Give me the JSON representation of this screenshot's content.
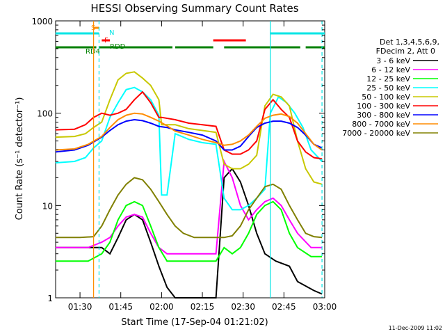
{
  "chart_data": {
    "type": "line",
    "title": "HESSI Observing Summary Count Rates",
    "xlabel": "Start Time (17-Sep-04 01:21:02)",
    "ylabel": "Count Rate (s⁻¹ detector⁻¹)",
    "ylog": true,
    "ylim": [
      1,
      1000
    ],
    "xlim": [
      "01:21:02",
      "03:00:00"
    ],
    "x_tick_labels": [
      "01:30",
      "01:45",
      "02:00",
      "02:15",
      "02:30",
      "02:45",
      "03:00"
    ],
    "y_tick_labels": [
      "1",
      "10",
      "100",
      "1000"
    ],
    "legend_header": [
      "Det 1,3,4,5,6,9,",
      "FDecim 2, Att 0"
    ],
    "legend_placement": "right",
    "timestamp": "11-Dec-2009 11:02",
    "series": [
      {
        "name": "3 - 6 keV",
        "color": "#000000",
        "points": [
          [
            "01:21",
            3.5
          ],
          [
            "01:33",
            3.5
          ],
          [
            "01:38",
            3.5
          ],
          [
            "01:41",
            3.0
          ],
          [
            "01:44",
            4.5
          ],
          [
            "01:47",
            7
          ],
          [
            "01:50",
            8
          ],
          [
            "01:53",
            7
          ],
          [
            "01:56",
            4
          ],
          [
            "01:59",
            2.2
          ],
          [
            "02:02",
            1.3
          ],
          [
            "02:05",
            1
          ],
          [
            "02:20",
            1
          ],
          [
            "02:23",
            20
          ],
          [
            "02:26",
            25
          ],
          [
            "02:29",
            18
          ],
          [
            "02:32",
            10
          ],
          [
            "02:35",
            5
          ],
          [
            "02:38",
            3
          ],
          [
            "02:42",
            2.5
          ],
          [
            "02:47",
            2.2
          ],
          [
            "02:50",
            1.5
          ],
          [
            "02:56",
            1.2
          ],
          [
            "02:59",
            1.1
          ]
        ]
      },
      {
        "name": "6 - 12 keV",
        "color": "#ff00ff",
        "points": [
          [
            "01:21",
            3.5
          ],
          [
            "01:33",
            3.5
          ],
          [
            "01:38",
            4
          ],
          [
            "01:41",
            4.5
          ],
          [
            "01:44",
            6
          ],
          [
            "01:47",
            7.5
          ],
          [
            "01:50",
            8
          ],
          [
            "01:53",
            7.5
          ],
          [
            "01:56",
            5
          ],
          [
            "01:59",
            3.5
          ],
          [
            "02:02",
            3
          ],
          [
            "02:05",
            3
          ],
          [
            "02:20",
            3
          ],
          [
            "02:23",
            30
          ],
          [
            "02:26",
            20
          ],
          [
            "02:29",
            10
          ],
          [
            "02:32",
            7
          ],
          [
            "02:35",
            9
          ],
          [
            "02:38",
            11
          ],
          [
            "02:41",
            12
          ],
          [
            "02:44",
            10
          ],
          [
            "02:47",
            7
          ],
          [
            "02:50",
            5
          ],
          [
            "02:55",
            3.5
          ],
          [
            "02:59",
            3.5
          ]
        ]
      },
      {
        "name": "12 - 25 keV",
        "color": "#00ff00",
        "points": [
          [
            "01:21",
            2.5
          ],
          [
            "01:33",
            2.5
          ],
          [
            "01:38",
            3
          ],
          [
            "01:41",
            4
          ],
          [
            "01:44",
            7
          ],
          [
            "01:47",
            10
          ],
          [
            "01:50",
            11
          ],
          [
            "01:53",
            10
          ],
          [
            "01:56",
            6
          ],
          [
            "01:59",
            3.5
          ],
          [
            "02:02",
            2.5
          ],
          [
            "02:05",
            2.5
          ],
          [
            "02:20",
            2.5
          ],
          [
            "02:23",
            3.5
          ],
          [
            "02:26",
            3
          ],
          [
            "02:29",
            3.5
          ],
          [
            "02:32",
            5
          ],
          [
            "02:35",
            8
          ],
          [
            "02:38",
            10
          ],
          [
            "02:41",
            11
          ],
          [
            "02:44",
            9
          ],
          [
            "02:47",
            5
          ],
          [
            "02:50",
            3.5
          ],
          [
            "02:55",
            2.8
          ],
          [
            "02:59",
            2.8
          ]
        ]
      },
      {
        "name": "25 - 50 keV",
        "color": "#00ffff",
        "points": [
          [
            "01:21",
            29
          ],
          [
            "01:28",
            30
          ],
          [
            "01:32",
            33
          ],
          [
            "01:35",
            42
          ],
          [
            "01:38",
            50
          ],
          [
            "01:41",
            90
          ],
          [
            "01:44",
            130
          ],
          [
            "01:47",
            180
          ],
          [
            "01:50",
            190
          ],
          [
            "01:53",
            170
          ],
          [
            "01:56",
            140
          ],
          [
            "01:59",
            95
          ],
          [
            "02:00",
            13
          ],
          [
            "02:02",
            13
          ],
          [
            "02:05",
            60
          ],
          [
            "02:10",
            52
          ],
          [
            "02:15",
            48
          ],
          [
            "02:20",
            46
          ],
          [
            "02:23",
            12
          ],
          [
            "02:26",
            9
          ],
          [
            "02:29",
            9
          ],
          [
            "02:32",
            10
          ],
          [
            "02:35",
            12
          ],
          [
            "02:38",
            15
          ],
          [
            "02:40",
            100
          ],
          [
            "02:43",
            150
          ],
          [
            "02:46",
            130
          ],
          [
            "02:49",
            100
          ],
          [
            "02:52",
            70
          ],
          [
            "02:55",
            40
          ],
          [
            "02:59",
            30
          ]
        ]
      },
      {
        "name": "50 - 100 keV",
        "color": "#c8c800",
        "points": [
          [
            "01:21",
            55
          ],
          [
            "01:28",
            56
          ],
          [
            "01:32",
            60
          ],
          [
            "01:35",
            70
          ],
          [
            "01:38",
            80
          ],
          [
            "01:41",
            140
          ],
          [
            "01:44",
            230
          ],
          [
            "01:47",
            270
          ],
          [
            "01:50",
            280
          ],
          [
            "01:53",
            240
          ],
          [
            "01:56",
            200
          ],
          [
            "01:59",
            140
          ],
          [
            "02:00",
            75
          ],
          [
            "02:05",
            75
          ],
          [
            "02:10",
            68
          ],
          [
            "02:15",
            65
          ],
          [
            "02:20",
            62
          ],
          [
            "02:23",
            28
          ],
          [
            "02:26",
            25
          ],
          [
            "02:29",
            25
          ],
          [
            "02:32",
            28
          ],
          [
            "02:35",
            35
          ],
          [
            "02:38",
            120
          ],
          [
            "02:41",
            160
          ],
          [
            "02:44",
            150
          ],
          [
            "02:47",
            120
          ],
          [
            "02:50",
            50
          ],
          [
            "02:53",
            25
          ],
          [
            "02:56",
            18
          ],
          [
            "02:59",
            17
          ]
        ]
      },
      {
        "name": "100 - 300 keV",
        "color": "#ff0000",
        "points": [
          [
            "01:21",
            66
          ],
          [
            "01:28",
            67
          ],
          [
            "01:32",
            75
          ],
          [
            "01:35",
            90
          ],
          [
            "01:38",
            100
          ],
          [
            "01:41",
            95
          ],
          [
            "01:44",
            100
          ],
          [
            "01:47",
            110
          ],
          [
            "01:50",
            140
          ],
          [
            "01:53",
            170
          ],
          [
            "01:56",
            130
          ],
          [
            "01:59",
            90
          ],
          [
            "02:00",
            90
          ],
          [
            "02:05",
            85
          ],
          [
            "02:10",
            78
          ],
          [
            "02:15",
            75
          ],
          [
            "02:20",
            72
          ],
          [
            "02:23",
            40
          ],
          [
            "02:26",
            36
          ],
          [
            "02:29",
            36
          ],
          [
            "02:32",
            40
          ],
          [
            "02:35",
            50
          ],
          [
            "02:38",
            110
          ],
          [
            "02:41",
            140
          ],
          [
            "02:44",
            110
          ],
          [
            "02:47",
            90
          ],
          [
            "02:50",
            50
          ],
          [
            "02:53",
            38
          ],
          [
            "02:56",
            33
          ],
          [
            "02:59",
            32
          ]
        ]
      },
      {
        "name": "300 - 800 keV",
        "color": "#0000ff",
        "points": [
          [
            "01:21",
            38
          ],
          [
            "01:28",
            40
          ],
          [
            "01:33",
            45
          ],
          [
            "01:38",
            55
          ],
          [
            "01:41",
            65
          ],
          [
            "01:44",
            75
          ],
          [
            "01:47",
            82
          ],
          [
            "01:50",
            85
          ],
          [
            "01:53",
            83
          ],
          [
            "01:56",
            78
          ],
          [
            "01:59",
            72
          ],
          [
            "02:02",
            70
          ],
          [
            "02:05",
            66
          ],
          [
            "02:10",
            62
          ],
          [
            "02:15",
            58
          ],
          [
            "02:20",
            50
          ],
          [
            "02:23",
            40
          ],
          [
            "02:26",
            40
          ],
          [
            "02:29",
            44
          ],
          [
            "02:32",
            56
          ],
          [
            "02:35",
            70
          ],
          [
            "02:38",
            78
          ],
          [
            "02:41",
            82
          ],
          [
            "02:44",
            82
          ],
          [
            "02:47",
            78
          ],
          [
            "02:50",
            70
          ],
          [
            "02:53",
            58
          ],
          [
            "02:56",
            46
          ],
          [
            "02:59",
            42
          ]
        ]
      },
      {
        "name": "800 - 7000 keV",
        "color": "#ff8c00",
        "points": [
          [
            "01:21",
            40
          ],
          [
            "01:28",
            41
          ],
          [
            "01:33",
            46
          ],
          [
            "01:38",
            56
          ],
          [
            "01:41",
            70
          ],
          [
            "01:44",
            85
          ],
          [
            "01:47",
            95
          ],
          [
            "01:50",
            100
          ],
          [
            "01:53",
            98
          ],
          [
            "01:56",
            90
          ],
          [
            "01:59",
            82
          ],
          [
            "02:02",
            73
          ],
          [
            "02:05",
            64
          ],
          [
            "02:10",
            58
          ],
          [
            "02:15",
            52
          ],
          [
            "02:20",
            48
          ],
          [
            "02:23",
            45
          ],
          [
            "02:26",
            46
          ],
          [
            "02:29",
            50
          ],
          [
            "02:32",
            58
          ],
          [
            "02:35",
            72
          ],
          [
            "02:38",
            88
          ],
          [
            "02:41",
            95
          ],
          [
            "02:44",
            98
          ],
          [
            "02:47",
            92
          ],
          [
            "02:50",
            78
          ],
          [
            "02:53",
            60
          ],
          [
            "02:56",
            46
          ],
          [
            "02:59",
            40
          ]
        ]
      },
      {
        "name": "7000 - 20000 keV",
        "color": "#808000",
        "points": [
          [
            "01:21",
            4.5
          ],
          [
            "01:30",
            4.5
          ],
          [
            "01:35",
            4.6
          ],
          [
            "01:38",
            6
          ],
          [
            "01:41",
            9
          ],
          [
            "01:44",
            13
          ],
          [
            "01:47",
            17
          ],
          [
            "01:50",
            20
          ],
          [
            "01:53",
            19
          ],
          [
            "01:56",
            15
          ],
          [
            "01:59",
            11
          ],
          [
            "02:02",
            8
          ],
          [
            "02:05",
            6
          ],
          [
            "02:08",
            5
          ],
          [
            "02:12",
            4.5
          ],
          [
            "02:20",
            4.5
          ],
          [
            "02:23",
            4.5
          ],
          [
            "02:26",
            4.7
          ],
          [
            "02:29",
            6
          ],
          [
            "02:32",
            9
          ],
          [
            "02:35",
            12
          ],
          [
            "02:38",
            16
          ],
          [
            "02:41",
            17
          ],
          [
            "02:44",
            15
          ],
          [
            "02:47",
            10
          ],
          [
            "02:50",
            7
          ],
          [
            "02:53",
            5
          ],
          [
            "02:56",
            4.6
          ],
          [
            "02:59",
            4.5
          ]
        ]
      }
    ],
    "flags": {
      "labels": [
        "S",
        "N",
        "F",
        "RDD",
        "RD4"
      ],
      "night_color": "#00e5e5",
      "saa_color": "#ff8c00",
      "flare_color": "#ff0000",
      "decim_color": "#008000",
      "night_intervals": [
        [
          "01:21",
          "01:37"
        ],
        [
          "02:40",
          "03:00"
        ]
      ],
      "saa_intervals": [
        [
          "01:35",
          "01:37"
        ]
      ],
      "flare_intervals": [
        [
          "01:38",
          "01:41"
        ],
        [
          "02:19",
          "02:31"
        ]
      ],
      "rdd_intervals": [
        [
          "01:38",
          "01:42"
        ]
      ],
      "rd4_intervals": [
        [
          "01:21",
          "01:36"
        ],
        [
          "01:37",
          "02:04"
        ],
        [
          "02:05",
          "02:19"
        ],
        [
          "02:23",
          "02:51"
        ],
        [
          "02:53",
          "03:00"
        ]
      ]
    },
    "vertical_markers": [
      {
        "time": "01:35",
        "color": "#ff8c00",
        "style": "solid"
      },
      {
        "time": "01:37",
        "color": "#00e5e5",
        "style": "dashed"
      },
      {
        "time": "02:40",
        "color": "#00e5e5",
        "style": "solid"
      },
      {
        "time": "02:59",
        "color": "#00e5e5",
        "style": "dashed"
      }
    ]
  }
}
